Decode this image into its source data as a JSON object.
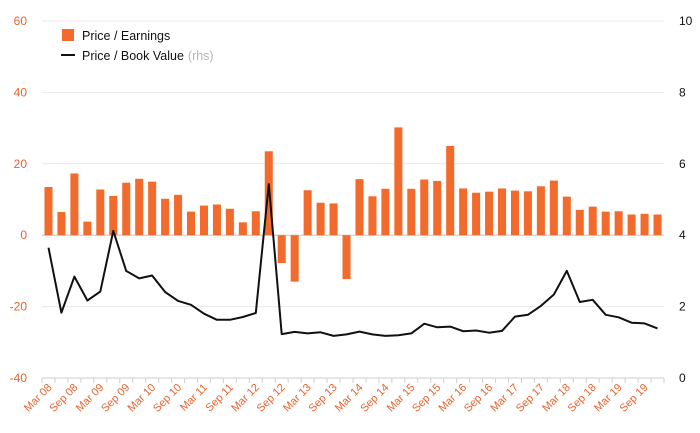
{
  "chart_data": {
    "type": "bar+line",
    "title": "",
    "xlabel": "",
    "ylabel_left": "",
    "ylabel_right": "",
    "ylim_left": [
      -40,
      60
    ],
    "ylim_right": [
      0,
      10
    ],
    "yticks_left": [
      "-40",
      "-20",
      "0",
      "20",
      "40",
      "60"
    ],
    "yticks_right": [
      "0",
      "2",
      "4",
      "6",
      "8",
      "10"
    ],
    "xtick_labels": [
      "Mar 08",
      "Sep 08",
      "Mar 09",
      "Sep 09",
      "Mar 10",
      "Sep 10",
      "Mar 11",
      "Sep 11",
      "Mar 12",
      "Sep 12",
      "Mar 13",
      "Sep 13",
      "Mar 14",
      "Sep 14",
      "Mar 15",
      "Sep 15",
      "Mar 16",
      "Sep 16",
      "Mar 17",
      "Sep 17",
      "Mar 18",
      "Sep 18",
      "Mar 19",
      "Sep 19"
    ],
    "legend": {
      "placement": "top-left",
      "pe_label": "Price / Earnings",
      "pb_label": "Price / Book Value",
      "pb_note": "(rhs)"
    },
    "colors": {
      "bar": "#f26b2c",
      "line": "#111111",
      "grid": "#e9e9e9"
    },
    "series": [
      {
        "name": "Price / Earnings",
        "axis": "left",
        "kind": "bar",
        "values": [
          13.5,
          6.5,
          17.3,
          3.8,
          12.8,
          11.0,
          14.7,
          15.8,
          15.0,
          10.2,
          11.3,
          6.6,
          8.3,
          8.6,
          7.4,
          3.6,
          6.7,
          23.5,
          -7.8,
          -13.0,
          12.6,
          9.1,
          8.9,
          -12.3,
          15.7,
          10.9,
          13.0,
          30.2,
          13.0,
          15.6,
          15.2,
          25.0,
          13.1,
          11.9,
          12.2,
          13.1,
          12.5,
          12.3,
          13.7,
          15.3,
          10.8,
          7.1,
          8.0,
          6.6,
          6.7,
          5.8,
          6.0,
          5.8
        ]
      },
      {
        "name": "Price / Book Value",
        "axis": "right",
        "kind": "line",
        "values": [
          3.65,
          1.83,
          2.84,
          2.17,
          2.42,
          4.12,
          3.0,
          2.79,
          2.87,
          2.41,
          2.16,
          2.05,
          1.8,
          1.63,
          1.63,
          1.71,
          1.82,
          5.43,
          1.23,
          1.29,
          1.25,
          1.28,
          1.18,
          1.22,
          1.3,
          1.22,
          1.18,
          1.2,
          1.25,
          1.52,
          1.42,
          1.44,
          1.31,
          1.33,
          1.27,
          1.32,
          1.72,
          1.77,
          2.02,
          2.34,
          3.0,
          2.13,
          2.19,
          1.77,
          1.7,
          1.55,
          1.53,
          1.39
        ]
      }
    ]
  }
}
